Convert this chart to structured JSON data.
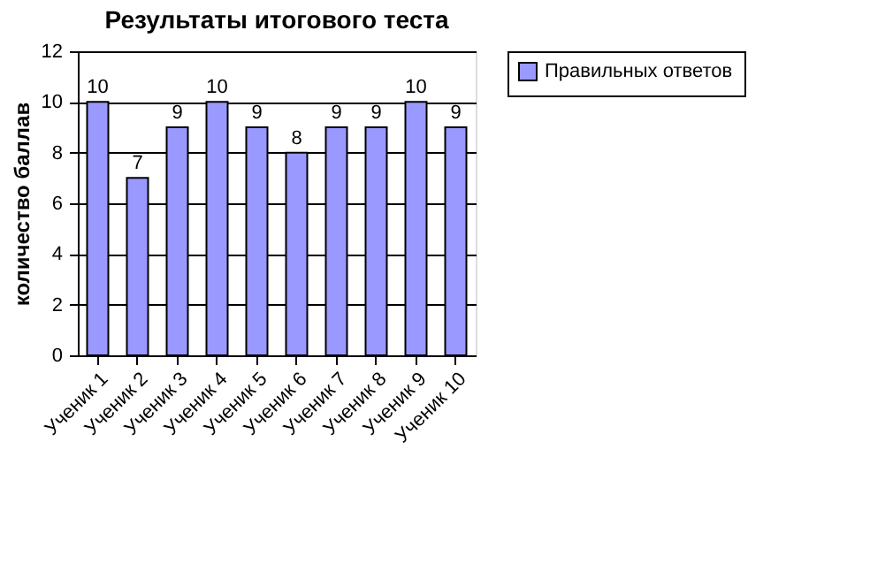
{
  "chart_data": {
    "type": "bar",
    "title": "Результаты итогового теста",
    "ylabel": "количество баллав",
    "categories": [
      "Ученик 1",
      "Ученик 2",
      "Ученик 3",
      "Ученик 4",
      "Ученик 5",
      "Ученик 6",
      "Ученик 7",
      "Ученик 8",
      "Ученик 9",
      "Ученик 10"
    ],
    "series": [
      {
        "name": "Правильных ответов",
        "color": "#9999ff",
        "values": [
          10,
          7,
          9,
          10,
          9,
          8,
          9,
          9,
          10,
          9
        ]
      }
    ],
    "ylim": [
      0,
      12
    ],
    "yticks": [
      0,
      2,
      4,
      6,
      8,
      10,
      12
    ],
    "grid": "y",
    "legend": "right",
    "data_labels": true
  }
}
